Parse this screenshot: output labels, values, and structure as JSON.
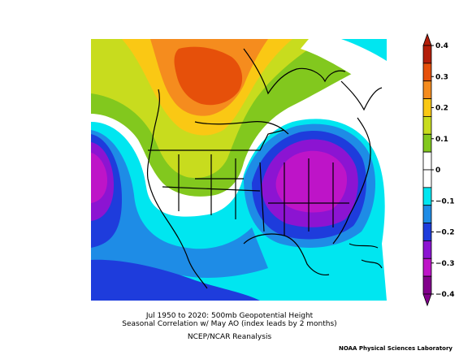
{
  "caption": {
    "line1": "Jul 1950 to 2020: 500mb Geopotential Height",
    "line2": "Seasonal Correlation w/ May AO (index leads by 2 months)",
    "line3": "NCEP/NCAR Reanalysis"
  },
  "credit": "NOAA Physical Sciences Laboratory",
  "colorbar": {
    "ticks": [
      "0.4",
      "0.3",
      "0.2",
      "0.1",
      "0",
      "−0.1",
      "−0.2",
      "−0.3",
      "−0.4"
    ],
    "bands": [
      "#b41e0a",
      "#e6500a",
      "#f58c1e",
      "#fac814",
      "#c8dc1e",
      "#82c81e",
      "#ffffff",
      "#ffffff",
      "#00e6f0",
      "#1e8ce6",
      "#1e3cdc",
      "#8c14d2",
      "#be14c8",
      "#82008c"
    ]
  },
  "map": {
    "region": "North America",
    "positive_colors": {
      "weak": "#82c81e",
      "mid": "#c8dc1e",
      "strong": "#fac814",
      "peak": "#f58c1e",
      "max": "#e6500a"
    },
    "negative_colors": {
      "weak": "#00e6f0",
      "mid": "#1e8ce6",
      "strong": "#1e3cdc",
      "peak": "#8c14d2",
      "max": "#be14c8"
    }
  }
}
